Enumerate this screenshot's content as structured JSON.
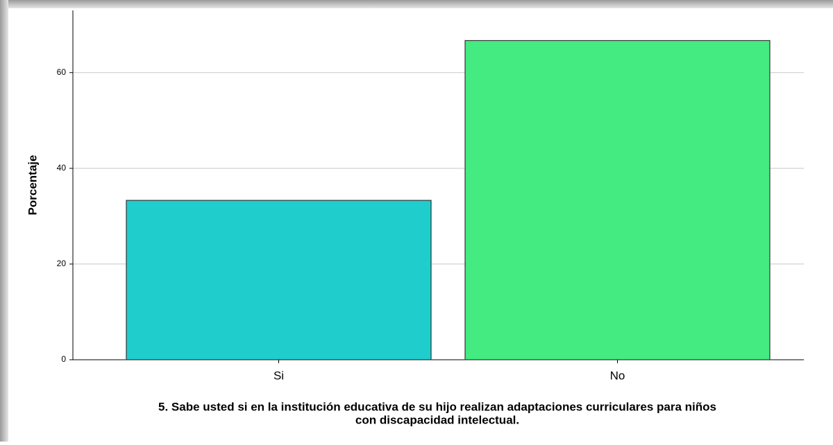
{
  "chart_data": {
    "type": "bar",
    "y_label": "Porcentaje",
    "x_label": [
      "5. Sabe usted si en la institución educativa de su hijo realizan adaptaciones curriculares para niños",
      "con discapacidad intelectual."
    ],
    "categories": [
      "Si",
      "No"
    ],
    "series": [
      {
        "name": "Porcentaje",
        "colors": [
          "#1fcecc",
          "#43eb80"
        ],
        "values": [
          33.3,
          66.7
        ]
      }
    ],
    "ylim": [
      0,
      73
    ],
    "yticks": [
      0,
      20,
      40,
      60
    ],
    "grid": true
  }
}
